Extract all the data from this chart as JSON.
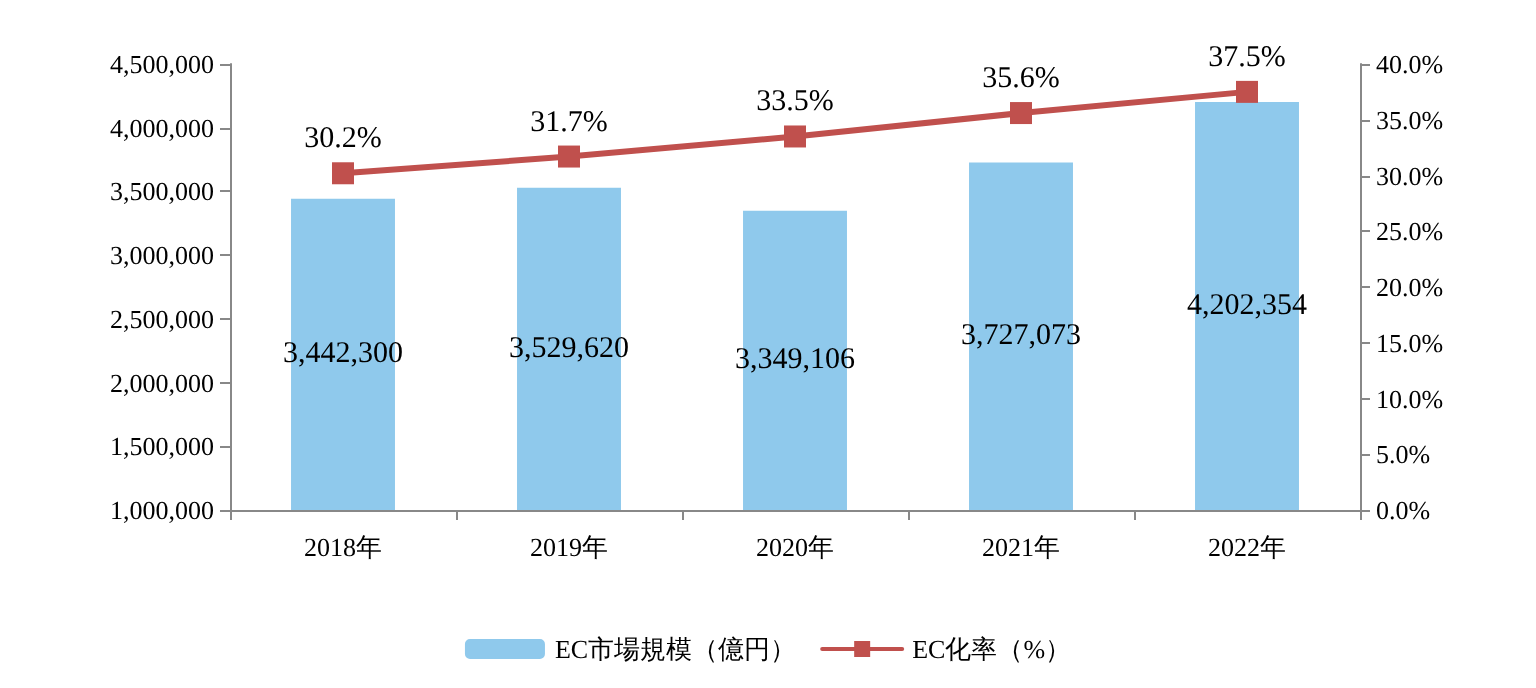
{
  "chart_data": {
    "type": "bar",
    "categories": [
      "2018年",
      "2019年",
      "2020年",
      "2021年",
      "2022年"
    ],
    "series": [
      {
        "name": "EC市場規模（億円）",
        "color": "#8fc9ec",
        "values": [
          3442300,
          3529620,
          3349106,
          3727073,
          4202354
        ],
        "value_labels": [
          "3,442,300",
          "3,529,620",
          "3,349,106",
          "3,727,073",
          "4,202,354"
        ]
      },
      {
        "name": "EC化率（%）",
        "type": "line",
        "axis": "y2",
        "color": "#c0504d",
        "values": [
          30.2,
          31.7,
          33.5,
          35.6,
          37.5
        ],
        "value_labels": [
          "30.2%",
          "31.7%",
          "33.5%",
          "35.6%",
          "37.5%"
        ]
      }
    ],
    "ylim": [
      1000000,
      4500000
    ],
    "yticks": [
      {
        "value": 1000000,
        "label": "1,000,000"
      },
      {
        "value": 1500000,
        "label": "1,500,000"
      },
      {
        "value": 2000000,
        "label": "2,000,000"
      },
      {
        "value": 2500000,
        "label": "2,500,000"
      },
      {
        "value": 3000000,
        "label": "3,000,000"
      },
      {
        "value": 3500000,
        "label": "3,500,000"
      },
      {
        "value": 4000000,
        "label": "4,000,000"
      },
      {
        "value": 4500000,
        "label": "4,500,000"
      }
    ],
    "y2lim": [
      0,
      40
    ],
    "y2ticks": [
      {
        "value": 0,
        "label": "0.0%"
      },
      {
        "value": 5,
        "label": "5.0%"
      },
      {
        "value": 10,
        "label": "10.0%"
      },
      {
        "value": 15,
        "label": "15.0%"
      },
      {
        "value": 20,
        "label": "20.0%"
      },
      {
        "value": 25,
        "label": "25.0%"
      },
      {
        "value": 30,
        "label": "30.0%"
      },
      {
        "value": 35,
        "label": "35.0%"
      },
      {
        "value": 40,
        "label": "40.0%"
      }
    ],
    "legend": "bottom",
    "marker": "square",
    "line_style": "solid"
  }
}
